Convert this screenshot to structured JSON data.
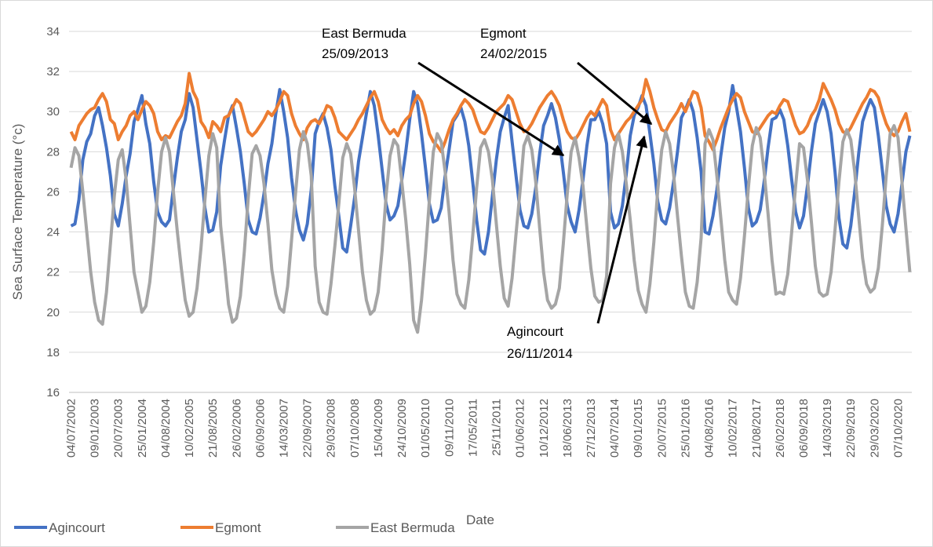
{
  "chart_data": {
    "type": "line",
    "ylabel": "Sea Surface Temperature (°c)",
    "xlabel": "Date",
    "ylim": [
      16,
      34
    ],
    "yticks": [
      16,
      18,
      20,
      22,
      24,
      26,
      28,
      30,
      32,
      34
    ],
    "grid": true,
    "legend": "bottom-left",
    "annotations": [
      {
        "text": [
          "East Bermuda",
          "25/09/2013"
        ]
      },
      {
        "text": [
          "Egmont",
          "24/02/2015"
        ]
      },
      {
        "text": [
          "Agincourt",
          "26/11/2014"
        ]
      }
    ],
    "categories": [
      "04/07/2002",
      null,
      null,
      null,
      null,
      null,
      "09/01/2003",
      null,
      null,
      null,
      null,
      null,
      "20/07/2003",
      null,
      null,
      null,
      null,
      null,
      "25/01/2004",
      null,
      null,
      null,
      null,
      null,
      "04/08/2004",
      null,
      null,
      null,
      null,
      null,
      "10/02/2005",
      null,
      null,
      null,
      null,
      null,
      "21/08/2005",
      null,
      null,
      null,
      null,
      null,
      "26/02/2006",
      null,
      null,
      null,
      null,
      null,
      "06/09/2006",
      null,
      null,
      null,
      null,
      null,
      "14/03/2007",
      null,
      null,
      null,
      null,
      null,
      "22/09/2007",
      null,
      null,
      null,
      null,
      null,
      "29/03/2008",
      null,
      null,
      null,
      null,
      null,
      "07/10/2008",
      null,
      null,
      null,
      null,
      null,
      "15/04/2009",
      null,
      null,
      null,
      null,
      null,
      "24/10/2009",
      null,
      null,
      null,
      null,
      null,
      "01/05/2010",
      null,
      null,
      null,
      null,
      null,
      "09/11/2010",
      null,
      null,
      null,
      null,
      null,
      "17/05/2011",
      null,
      null,
      null,
      null,
      null,
      "25/11/2011",
      null,
      null,
      null,
      null,
      null,
      "01/06/2012",
      null,
      null,
      null,
      null,
      null,
      "10/12/2012",
      null,
      null,
      null,
      null,
      null,
      "18/06/2013",
      null,
      null,
      null,
      null,
      null,
      "27/12/2013",
      null,
      null,
      null,
      null,
      null,
      "04/07/2014",
      null,
      null,
      null,
      null,
      null,
      "09/01/2015",
      null,
      null,
      null,
      null,
      null,
      "20/07/2015",
      null,
      null,
      null,
      null,
      null,
      "25/01/2016",
      null,
      null,
      null,
      null,
      null,
      "04/08/2016",
      null,
      null,
      null,
      null,
      null,
      "10/02/2017",
      null,
      null,
      null,
      null,
      null,
      "21/08/2017",
      null,
      null,
      null,
      null,
      null,
      "26/02/2018",
      null,
      null,
      null,
      null,
      null,
      "06/09/2018",
      null,
      null,
      null,
      null,
      null,
      "14/03/2019",
      null,
      null,
      null,
      null,
      null,
      "22/09/2019",
      null,
      null,
      null,
      null,
      null,
      "29/03/2020",
      null,
      null,
      null,
      null,
      null,
      "07/10/2020",
      null,
      null,
      null
    ],
    "series": [
      {
        "name": "Agincourt",
        "color": "#4472c4",
        "values": [
          24.3,
          24.4,
          25.6,
          27.6,
          28.5,
          28.9,
          29.8,
          30.2,
          29.3,
          28.2,
          26.8,
          24.9,
          24.3,
          25.4,
          26.8,
          27.9,
          29.5,
          30.1,
          30.8,
          29.4,
          28.4,
          26.5,
          25.0,
          24.5,
          24.3,
          24.6,
          26.2,
          27.7,
          29.0,
          29.6,
          30.9,
          30.2,
          28.6,
          27.0,
          25.2,
          24.0,
          24.1,
          25.0,
          27.3,
          28.6,
          29.8,
          30.3,
          29.2,
          28.0,
          26.4,
          24.6,
          24.0,
          23.9,
          24.7,
          25.9,
          27.4,
          28.4,
          29.9,
          31.1,
          30.0,
          28.7,
          26.7,
          25.1,
          24.1,
          23.6,
          24.4,
          26.1,
          28.9,
          29.5,
          29.9,
          29.2,
          28.1,
          26.3,
          24.8,
          23.2,
          23.0,
          24.3,
          25.7,
          27.5,
          28.7,
          29.9,
          31.0,
          30.3,
          28.8,
          27.1,
          25.4,
          24.6,
          24.8,
          25.3,
          26.6,
          28.0,
          29.6,
          31.0,
          30.4,
          28.9,
          27.2,
          25.4,
          24.5,
          24.6,
          25.2,
          26.8,
          28.1,
          29.5,
          29.8,
          30.2,
          29.5,
          28.3,
          26.5,
          24.6,
          23.1,
          22.9,
          24.0,
          25.8,
          27.6,
          29.0,
          29.7,
          30.3,
          28.5,
          26.8,
          25.1,
          24.3,
          24.2,
          24.9,
          26.2,
          27.9,
          29.3,
          29.8,
          30.4,
          29.7,
          28.6,
          27.0,
          25.3,
          24.5,
          24.0,
          25.1,
          26.6,
          28.3,
          29.6,
          29.6,
          30.0,
          29.4,
          28.4,
          25.0,
          24.2,
          24.4,
          25.3,
          26.9,
          28.8,
          29.8,
          30.2,
          30.8,
          30.3,
          28.9,
          27.4,
          25.5,
          24.6,
          24.4,
          25.2,
          26.5,
          28.0,
          29.7,
          30.1,
          30.6,
          30.0,
          28.7,
          27.0,
          24.0,
          23.9,
          24.8,
          26.1,
          27.8,
          29.2,
          30.0,
          31.3,
          30.2,
          29.0,
          27.2,
          25.2,
          24.3,
          24.5,
          25.1,
          26.5,
          28.2,
          29.6,
          29.7,
          30.1,
          29.6,
          28.3,
          26.6,
          25.0,
          24.2,
          24.8,
          26.3,
          28.0,
          29.4,
          30.0,
          30.6,
          30.0,
          28.9,
          27.0,
          24.7,
          23.4,
          23.2,
          24.3,
          26.0,
          27.9,
          29.5,
          30.1,
          30.6,
          30.2,
          28.8,
          27.1,
          25.3,
          24.4,
          24.0,
          24.9,
          26.4,
          28.0,
          28.8
        ]
      },
      {
        "name": "Egmont",
        "color": "#ed7d31",
        "values": [
          29.0,
          28.6,
          29.3,
          29.6,
          29.9,
          30.1,
          30.2,
          30.6,
          30.9,
          30.5,
          29.6,
          29.4,
          28.6,
          29.0,
          29.3,
          29.8,
          30.0,
          29.6,
          30.1,
          30.5,
          30.3,
          29.9,
          29.0,
          28.6,
          28.8,
          28.7,
          29.1,
          29.5,
          29.8,
          30.4,
          31.9,
          31.0,
          30.6,
          29.5,
          29.2,
          28.7,
          29.5,
          29.3,
          29.0,
          29.7,
          29.8,
          30.2,
          30.6,
          30.4,
          29.7,
          29.0,
          28.8,
          29.0,
          29.3,
          29.6,
          30.0,
          29.8,
          30.1,
          30.5,
          31.0,
          30.8,
          29.9,
          29.3,
          28.9,
          28.6,
          29.2,
          29.5,
          29.6,
          29.4,
          29.8,
          30.3,
          30.2,
          29.7,
          29.0,
          28.8,
          28.6,
          28.9,
          29.2,
          29.6,
          29.9,
          30.3,
          30.7,
          31.0,
          30.5,
          29.6,
          29.2,
          28.9,
          29.1,
          28.8,
          29.3,
          29.6,
          29.8,
          30.4,
          30.8,
          30.5,
          29.8,
          28.9,
          28.5,
          28.3,
          28.0,
          28.5,
          29.1,
          29.6,
          29.9,
          30.3,
          30.6,
          30.4,
          30.1,
          29.5,
          29.0,
          28.9,
          29.2,
          29.6,
          30.0,
          30.2,
          30.4,
          30.8,
          30.6,
          30.0,
          29.4,
          29.0,
          29.1,
          29.4,
          29.8,
          30.2,
          30.5,
          30.8,
          31.0,
          30.7,
          30.3,
          29.6,
          29.0,
          28.7,
          28.6,
          28.9,
          29.3,
          29.7,
          30.0,
          29.8,
          30.2,
          30.6,
          30.3,
          29.1,
          28.6,
          28.9,
          29.2,
          29.5,
          29.7,
          30.0,
          30.3,
          30.6,
          31.6,
          31.0,
          30.2,
          29.6,
          29.1,
          29.0,
          29.4,
          29.7,
          30.0,
          30.4,
          30.0,
          30.5,
          31.0,
          30.9,
          30.2,
          28.8,
          28.5,
          28.1,
          28.6,
          29.2,
          29.7,
          30.2,
          30.6,
          30.9,
          30.7,
          30.0,
          29.5,
          29.0,
          28.9,
          29.2,
          29.5,
          29.8,
          30.0,
          29.9,
          30.3,
          30.6,
          30.5,
          29.9,
          29.3,
          28.9,
          29.0,
          29.3,
          29.8,
          30.1,
          30.6,
          31.4,
          31.0,
          30.6,
          30.1,
          29.4,
          29.0,
          28.9,
          29.2,
          29.6,
          30.0,
          30.4,
          30.7,
          31.1,
          31.0,
          30.7,
          30.0,
          29.4,
          29.0,
          28.8,
          29.0,
          29.5,
          29.9,
          29.0
        ]
      },
      {
        "name": "East Bermuda",
        "color": "#a5a5a5",
        "values": [
          27.2,
          28.2,
          27.8,
          26.0,
          24.0,
          22.0,
          20.5,
          19.6,
          19.4,
          21.0,
          23.4,
          25.8,
          27.6,
          28.1,
          26.6,
          24.3,
          22.0,
          21.0,
          20.0,
          20.3,
          21.5,
          23.5,
          26.0,
          28.0,
          28.7,
          28.0,
          26.0,
          24.0,
          22.2,
          20.6,
          19.8,
          20.0,
          21.2,
          23.2,
          25.6,
          27.8,
          28.9,
          28.2,
          24.3,
          22.4,
          20.4,
          19.5,
          19.7,
          20.8,
          23.0,
          25.7,
          27.9,
          28.3,
          27.8,
          26.4,
          24.4,
          22.1,
          20.9,
          20.2,
          20.0,
          21.3,
          23.6,
          25.9,
          28.1,
          29.0,
          28.4,
          26.8,
          22.3,
          20.5,
          20.0,
          19.9,
          21.4,
          23.3,
          25.4,
          27.7,
          28.4,
          27.9,
          26.2,
          24.1,
          22.0,
          20.6,
          19.9,
          20.1,
          21.0,
          23.1,
          25.8,
          27.8,
          28.6,
          28.3,
          26.5,
          24.6,
          22.4,
          19.6,
          19.0,
          20.6,
          22.9,
          25.6,
          28.0,
          28.9,
          28.5,
          27.0,
          25.0,
          22.6,
          20.9,
          20.4,
          20.2,
          21.6,
          23.8,
          26.2,
          28.2,
          28.6,
          28.0,
          26.6,
          24.4,
          22.3,
          20.7,
          20.3,
          21.7,
          23.9,
          26.0,
          28.3,
          28.8,
          28.1,
          26.5,
          24.2,
          22.0,
          20.6,
          20.2,
          20.4,
          21.2,
          23.4,
          25.9,
          28.0,
          28.7,
          27.7,
          26.3,
          24.2,
          22.2,
          20.8,
          20.5,
          20.6,
          21.8,
          26.4,
          28.2,
          28.9,
          28.0,
          26.4,
          24.6,
          22.6,
          21.1,
          20.4,
          20.0,
          21.4,
          23.5,
          26.1,
          28.1,
          29.0,
          28.4,
          26.9,
          24.8,
          22.8,
          21.0,
          20.3,
          20.2,
          21.5,
          23.7,
          28.4,
          29.1,
          28.6,
          26.8,
          24.7,
          22.6,
          21.0,
          20.6,
          20.4,
          21.7,
          23.8,
          26.2,
          28.3,
          29.2,
          28.7,
          27.0,
          24.9,
          22.6,
          20.9,
          21.0,
          20.9,
          21.9,
          24.0,
          26.3,
          28.4,
          28.2,
          26.6,
          24.5,
          22.3,
          21.0,
          20.8,
          20.9,
          22.0,
          24.1,
          26.5,
          28.5,
          29.1,
          28.6,
          27.0,
          24.8,
          22.7,
          21.4,
          21.0,
          21.2,
          22.2,
          24.3,
          26.8,
          28.9,
          29.3,
          28.7,
          26.5,
          24.2,
          22.0
        ]
      }
    ]
  }
}
